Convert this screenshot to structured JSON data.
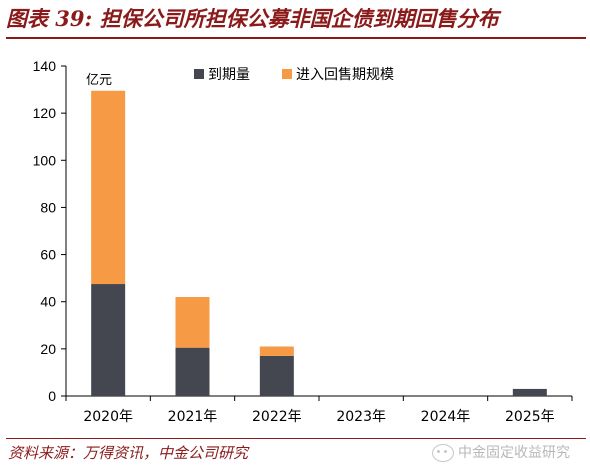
{
  "page": {
    "title": "图表 39: 担保公司所担保公募非国企债到期回售分布",
    "source": "资料来源：万得资讯，中金公司研究",
    "watermark": "中金固定收益研究",
    "watermark_icon": "wechat-icon"
  },
  "chart_data": {
    "type": "bar",
    "stacked": true,
    "categories": [
      "2020年",
      "2021年",
      "2022年",
      "2023年",
      "2024年",
      "2025年"
    ],
    "series": [
      {
        "name": "到期量",
        "values": [
          47.5,
          20.5,
          17,
          0,
          0,
          3
        ],
        "color": "#44474f"
      },
      {
        "name": "进入回售期规模",
        "values": [
          82,
          21.5,
          4,
          0,
          0,
          0
        ],
        "color": "#f79a46"
      }
    ],
    "unit_label": "亿元",
    "ylim": [
      0,
      140
    ],
    "yticks": [
      0,
      20,
      40,
      60,
      80,
      100,
      120,
      140
    ],
    "grid": false,
    "legend_position": "top"
  }
}
